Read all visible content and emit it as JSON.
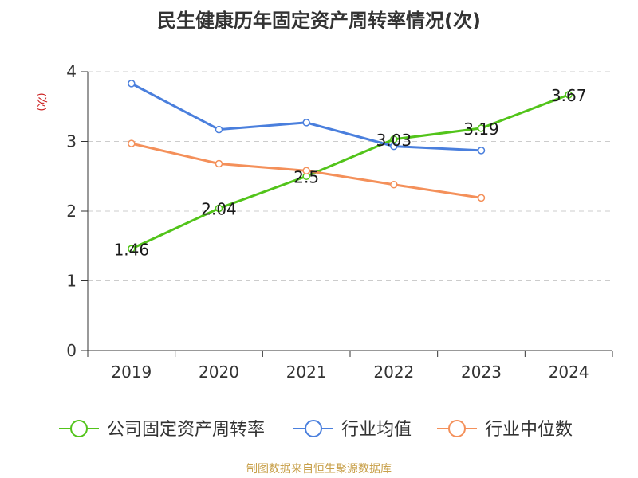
{
  "title": "民生健康历年固定资产周转率情况(次)",
  "source": "制图数据来自恒生聚源数据库",
  "chart_data": {
    "type": "line",
    "title": "民生健康历年固定资产周转率情况(次)",
    "xlabel": "",
    "ylabel": "(次)",
    "categories": [
      "2019",
      "2020",
      "2021",
      "2022",
      "2023",
      "2024"
    ],
    "ylim": [
      0,
      4
    ],
    "yticks": [
      0,
      1,
      2,
      3,
      4
    ],
    "grid": true,
    "legend_position": "bottom",
    "series": [
      {
        "name": "公司固定资产周转率",
        "color": "#52c41a",
        "values": [
          1.46,
          2.04,
          2.5,
          3.03,
          3.19,
          3.67
        ],
        "labels": [
          "1.46",
          "2.04",
          "2.5",
          "3.03",
          "3.19",
          "3.67"
        ]
      },
      {
        "name": "行业均值",
        "color": "#4a7fdd",
        "values": [
          3.83,
          3.17,
          3.27,
          2.93,
          2.87,
          null
        ]
      },
      {
        "name": "行业中位数",
        "color": "#f4905a",
        "values": [
          2.97,
          2.68,
          2.58,
          2.38,
          2.19,
          null
        ]
      }
    ]
  }
}
